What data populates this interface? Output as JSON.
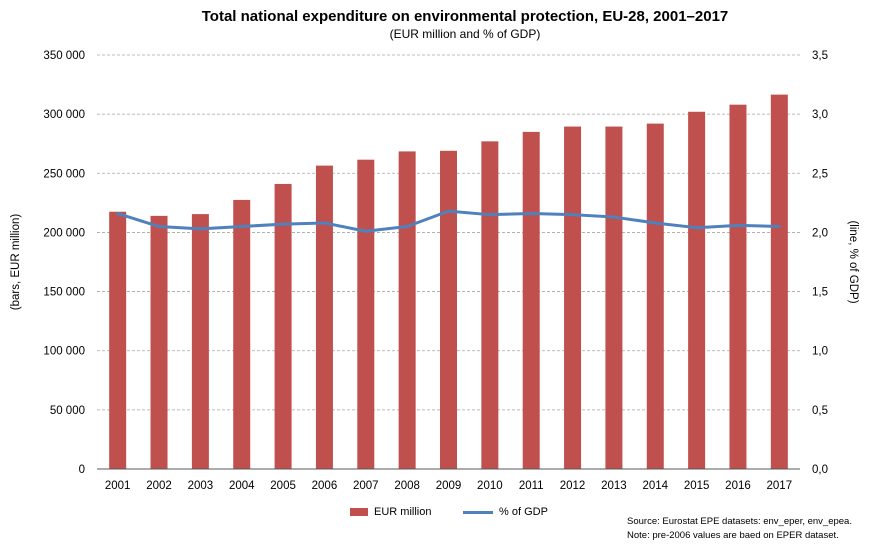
{
  "chart_data": {
    "type": "bar",
    "title": "Total national expenditure on environmental protection, EU-28, 2001–2017",
    "subtitle": "(EUR million and % of GDP)",
    "categories": [
      "2001",
      "2002",
      "2003",
      "2004",
      "2005",
      "2006",
      "2007",
      "2008",
      "2009",
      "2010",
      "2011",
      "2012",
      "2013",
      "2014",
      "2015",
      "2016",
      "2017"
    ],
    "series": [
      {
        "name": "EUR million",
        "type": "bar",
        "axis": "left",
        "color": "#c0504d",
        "values": [
          217500,
          214000,
          215500,
          227500,
          241000,
          256500,
          261500,
          268500,
          269000,
          277000,
          285000,
          289500,
          289500,
          292000,
          302000,
          308000,
          316500
        ]
      },
      {
        "name": "% of GDP",
        "type": "line",
        "axis": "right",
        "color": "#4f81bd",
        "values": [
          2.16,
          2.05,
          2.03,
          2.05,
          2.07,
          2.08,
          2.01,
          2.05,
          2.18,
          2.15,
          2.16,
          2.15,
          2.13,
          2.08,
          2.04,
          2.06,
          2.05
        ]
      }
    ],
    "ylabel_left": "(bars, EUR million)",
    "ylabel_right": "(line, % of GDP)",
    "ylim_left": [
      0,
      350000
    ],
    "ylim_right": [
      0,
      3.5
    ],
    "yticks_left": [
      "0",
      "50 000",
      "100 000",
      "150 000",
      "200 000",
      "250 000",
      "300 000",
      "350 000"
    ],
    "yticks_right": [
      "0,0",
      "0,5",
      "1,0",
      "1,5",
      "2,0",
      "2,5",
      "3,0",
      "3,5"
    ],
    "grid": true,
    "legend_position": "bottom-center"
  },
  "notes": {
    "source": "Source: Eurostat EPE datasets: env_eper, env_epea.",
    "note": "Note: pre-2006 values are baed on EPER dataset."
  }
}
